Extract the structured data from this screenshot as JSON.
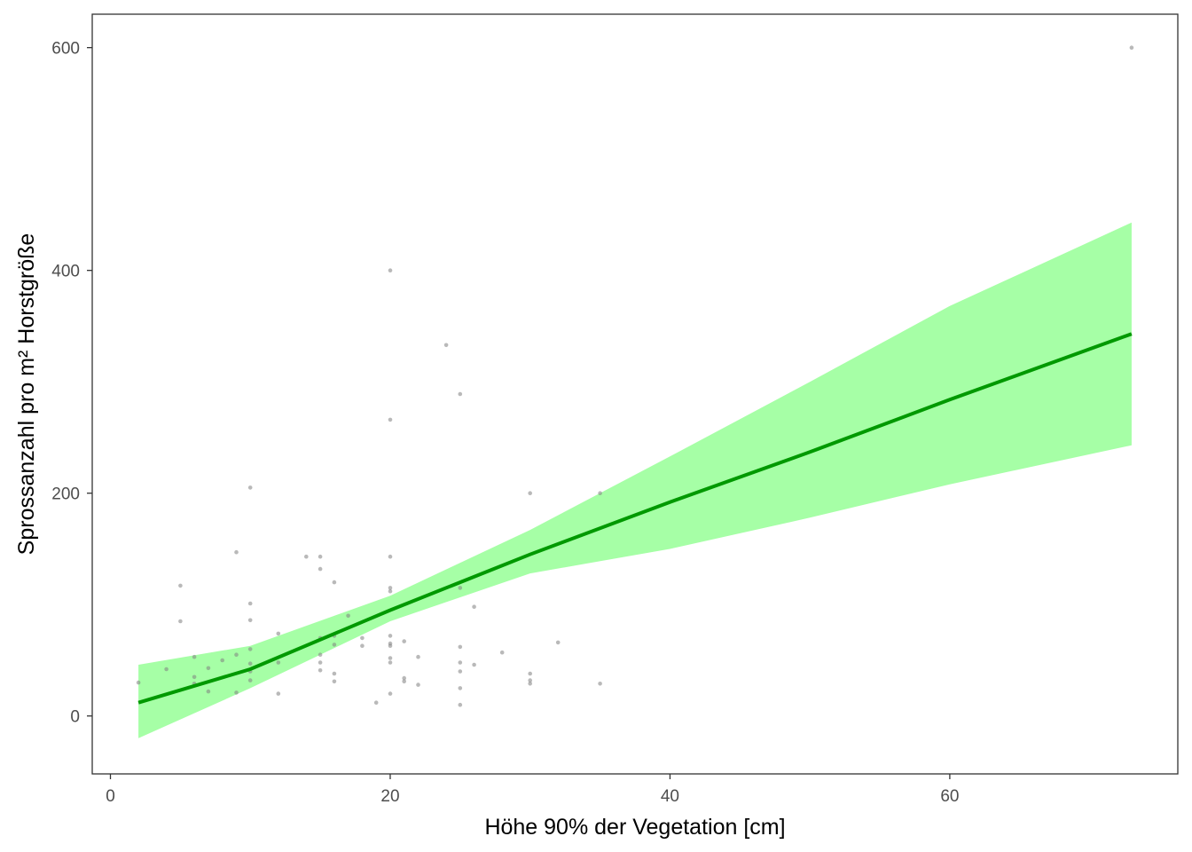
{
  "chart_data": {
    "type": "scatter",
    "xlabel": "Höhe 90% der Vegetation [cm]",
    "ylabel": "Sprossanzahl pro m² Horstgröße",
    "xlim": [
      -1.3,
      76.3
    ],
    "ylim": [
      -52,
      630
    ],
    "xticks": [
      0,
      20,
      40,
      60
    ],
    "yticks": [
      0,
      200,
      400,
      600
    ],
    "grid": false,
    "colors": {
      "points": "#808080",
      "fit_line": "#009900",
      "ribbon": "#a6ffa6"
    },
    "points": [
      [
        2,
        30
      ],
      [
        4,
        42
      ],
      [
        5,
        117
      ],
      [
        5,
        85
      ],
      [
        6,
        53
      ],
      [
        6,
        35
      ],
      [
        6,
        29
      ],
      [
        7,
        43
      ],
      [
        7,
        22
      ],
      [
        8,
        50
      ],
      [
        9,
        147
      ],
      [
        9,
        55
      ],
      [
        9,
        21
      ],
      [
        10,
        205
      ],
      [
        10,
        101
      ],
      [
        10,
        86
      ],
      [
        10,
        60
      ],
      [
        10,
        47
      ],
      [
        10,
        40
      ],
      [
        10,
        32
      ],
      [
        12,
        74
      ],
      [
        12,
        48
      ],
      [
        12,
        20
      ],
      [
        14,
        143
      ],
      [
        15,
        143
      ],
      [
        15,
        132
      ],
      [
        15,
        70
      ],
      [
        15,
        55
      ],
      [
        15,
        48
      ],
      [
        15,
        41
      ],
      [
        16,
        120
      ],
      [
        16,
        72
      ],
      [
        16,
        64
      ],
      [
        16,
        38
      ],
      [
        16,
        31
      ],
      [
        17,
        90
      ],
      [
        18,
        70
      ],
      [
        18,
        63
      ],
      [
        19,
        12
      ],
      [
        20,
        400
      ],
      [
        20,
        266
      ],
      [
        20,
        143
      ],
      [
        20,
        115
      ],
      [
        20,
        112
      ],
      [
        20,
        72
      ],
      [
        20,
        65
      ],
      [
        20,
        63
      ],
      [
        20,
        52
      ],
      [
        20,
        48
      ],
      [
        20,
        20
      ],
      [
        21,
        67
      ],
      [
        21,
        34
      ],
      [
        21,
        31
      ],
      [
        22,
        53
      ],
      [
        22,
        28
      ],
      [
        24,
        333
      ],
      [
        25,
        289
      ],
      [
        25,
        115
      ],
      [
        25,
        62
      ],
      [
        25,
        48
      ],
      [
        25,
        40
      ],
      [
        25,
        25
      ],
      [
        25,
        10
      ],
      [
        26,
        98
      ],
      [
        26,
        46
      ],
      [
        28,
        57
      ],
      [
        30,
        200
      ],
      [
        30,
        38
      ],
      [
        30,
        32
      ],
      [
        30,
        29
      ],
      [
        32,
        66
      ],
      [
        35,
        200
      ],
      [
        35,
        29
      ],
      [
        73,
        600
      ]
    ],
    "fit": {
      "x": [
        2,
        10,
        20,
        30,
        40,
        50,
        60,
        73
      ],
      "y": [
        12,
        42,
        95,
        145,
        192,
        237,
        284,
        343
      ],
      "lower": [
        -20,
        25,
        85,
        128,
        150,
        178,
        208,
        243
      ],
      "upper": [
        46,
        63,
        108,
        167,
        233,
        300,
        368,
        443
      ]
    }
  }
}
